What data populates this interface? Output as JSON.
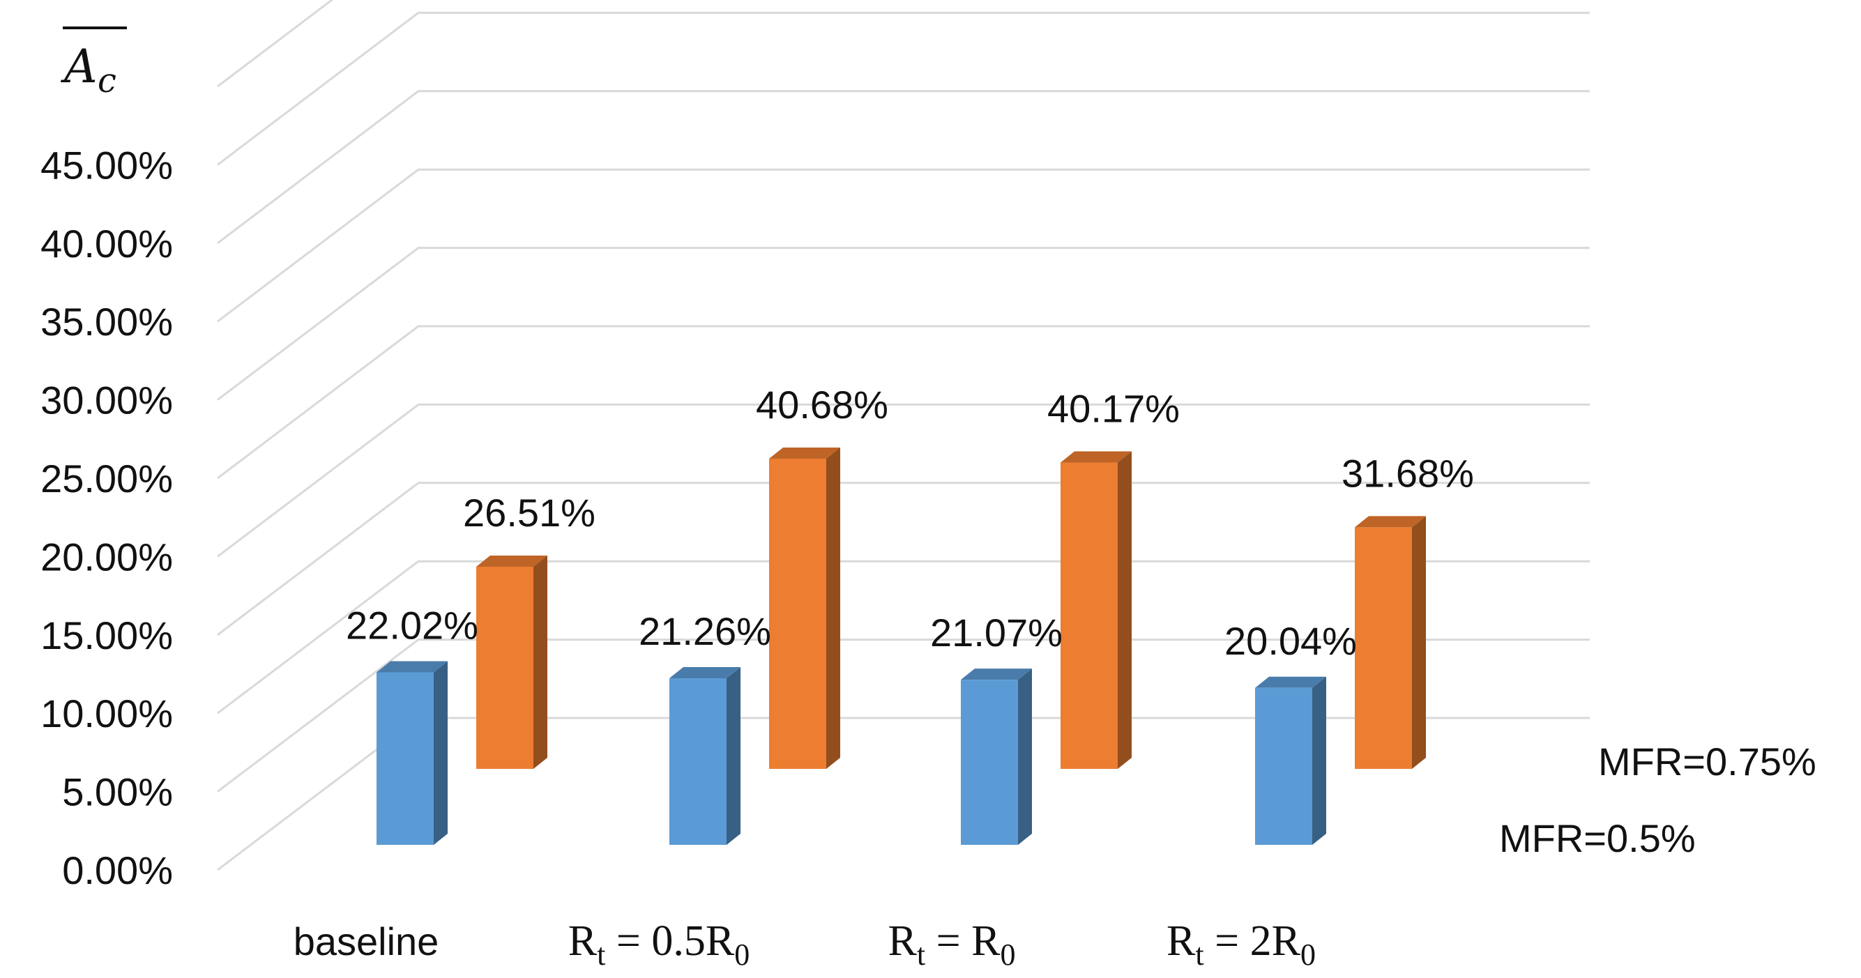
{
  "chart_data": {
    "type": "bar",
    "title": "A_c",
    "title_display": "A",
    "title_subscript": "c",
    "yticks": [
      "0.00%",
      "5.00%",
      "10.00%",
      "15.00%",
      "20.00%",
      "25.00%",
      "30.00%",
      "35.00%",
      "40.00%",
      "45.00%"
    ],
    "ylim": [
      0,
      45
    ],
    "categories": [
      "baseline",
      "R_t = 0.5R_0",
      "R_t = R_0",
      "R_t = 2R_0"
    ],
    "category_display": [
      {
        "main": "baseline",
        "sub": "",
        "rest": ""
      },
      {
        "main": "R",
        "sub": "t",
        "rest": " = 0.5R",
        "sub2": "0"
      },
      {
        "main": "R",
        "sub": "t",
        "rest": " = R",
        "sub2": "0"
      },
      {
        "main": "R",
        "sub": "t",
        "rest": " = 2R",
        "sub2": "0"
      }
    ],
    "series": [
      {
        "name": "MFR=0.5%",
        "color": "#5b9bd5",
        "values": [
          22.02,
          21.26,
          21.07,
          20.04
        ],
        "labels": [
          "22.02%",
          "21.26%",
          "21.07%",
          "20.04%"
        ]
      },
      {
        "name": "MFR=0.75%",
        "color": "#ed7d31",
        "values": [
          26.51,
          40.68,
          40.17,
          31.68
        ],
        "labels": [
          "26.51%",
          "40.68%",
          "40.17%",
          "31.68%"
        ]
      }
    ],
    "grid": true
  }
}
